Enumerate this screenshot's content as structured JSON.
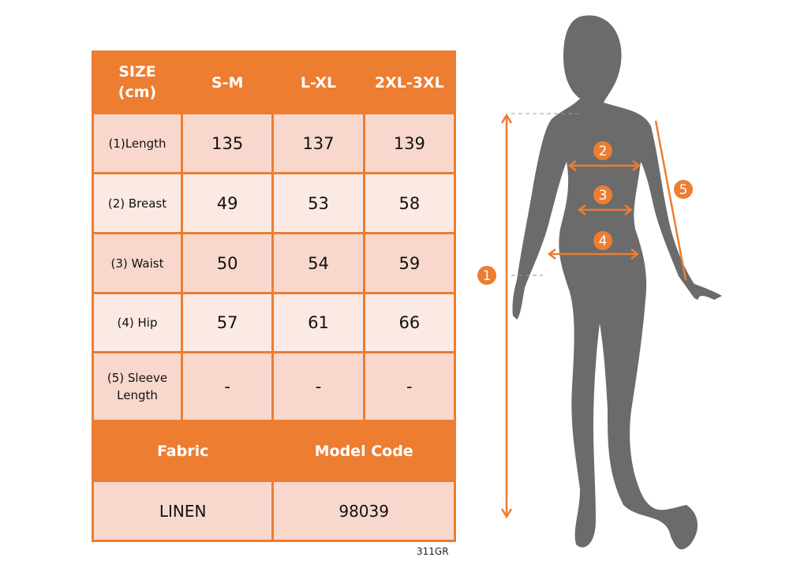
{
  "header": {
    "size_label": "SIZE\n(cm)",
    "sizes": [
      "S-M",
      "L-XL",
      "2XL-3XL"
    ]
  },
  "rows": [
    {
      "label": "(1)Length",
      "values": [
        "135",
        "137",
        "139"
      ]
    },
    {
      "label": "(2) Breast",
      "values": [
        "49",
        "53",
        "58"
      ]
    },
    {
      "label": "(3) Waist",
      "values": [
        "50",
        "54",
        "59"
      ]
    },
    {
      "label": "(4) Hip",
      "values": [
        "57",
        "61",
        "66"
      ]
    },
    {
      "label": "(5) Sleeve Length",
      "values": [
        "-",
        "-",
        "-"
      ]
    }
  ],
  "footer": {
    "fabric_label": "Fabric",
    "model_code_label": "Model Code",
    "fabric": "LINEN",
    "model_code": "98039"
  },
  "product_code": "311GR",
  "diagram": {
    "markers": [
      "1",
      "2",
      "3",
      "4",
      "5"
    ]
  },
  "colors": {
    "accent": "#ed7d31",
    "silhouette": "#6b6b6b",
    "row_dark": "#f8d8cd",
    "row_light": "#fbe9e3"
  }
}
